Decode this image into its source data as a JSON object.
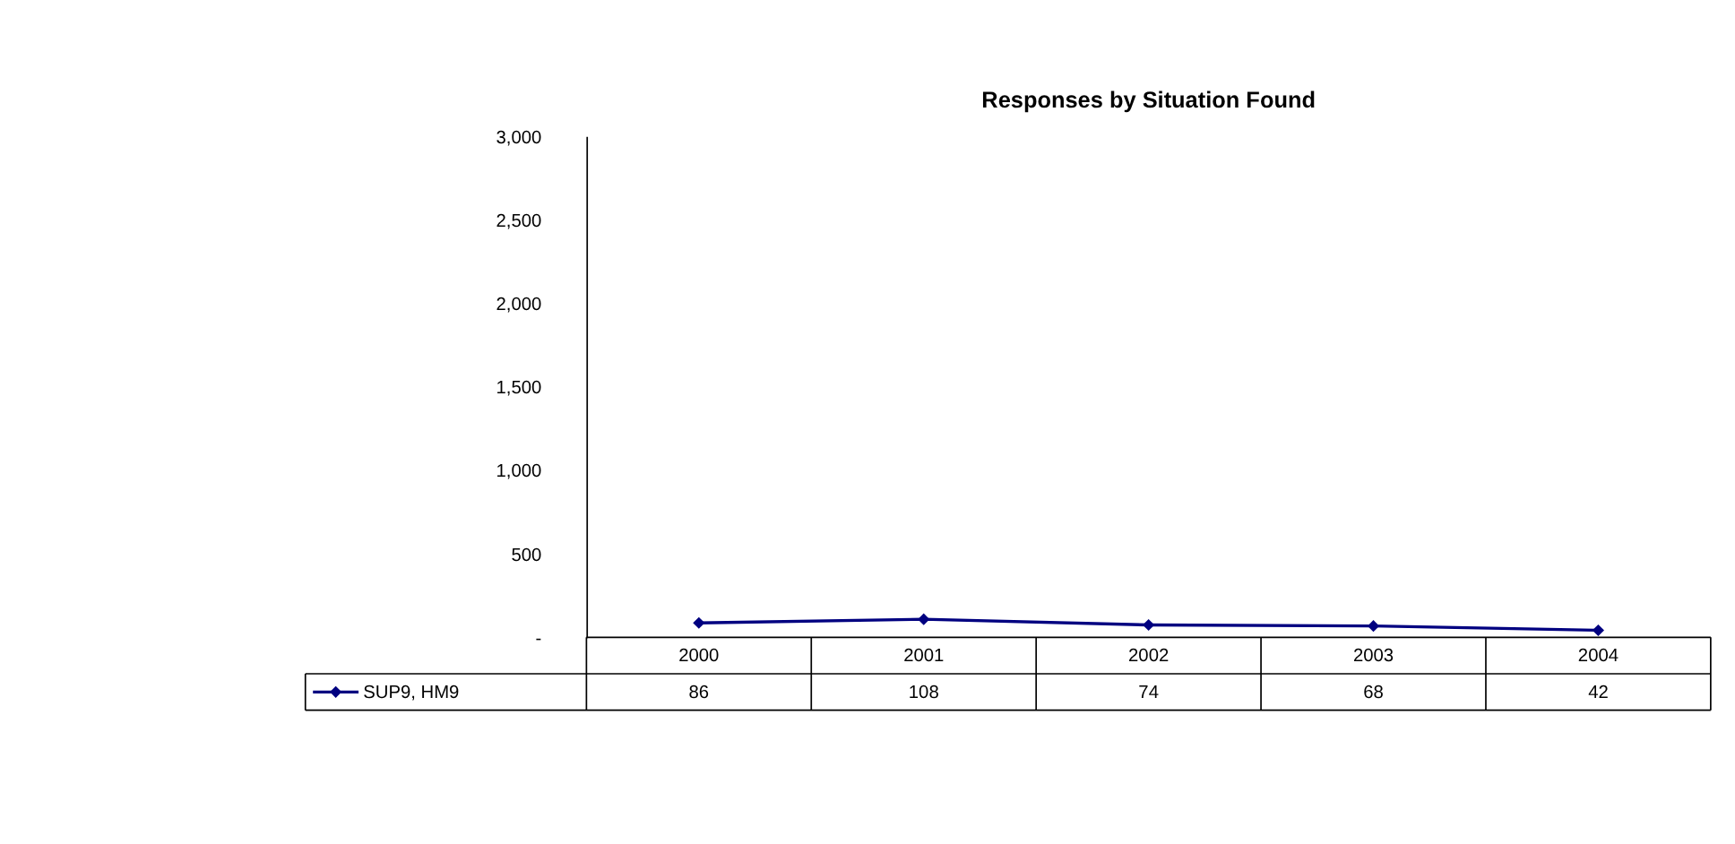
{
  "chart_data": {
    "type": "line",
    "title": "Responses by Situation Found",
    "categories": [
      "2000",
      "2001",
      "2002",
      "2003",
      "2004"
    ],
    "series": [
      {
        "name": "SUP9, HM9",
        "color": "#000080",
        "values": [
          86,
          108,
          74,
          68,
          42
        ]
      }
    ],
    "ylim": [
      0,
      3000
    ],
    "yticks": [
      {
        "value": 0,
        "label": "-"
      },
      {
        "value": 500,
        "label": "500"
      },
      {
        "value": 1000,
        "label": "1,000"
      },
      {
        "value": 1500,
        "label": "1,500"
      },
      {
        "value": 2000,
        "label": "2,000"
      },
      {
        "value": 2500,
        "label": "2,500"
      },
      {
        "value": 3000,
        "label": "3,000"
      }
    ],
    "grid": false,
    "legend": "bottom left",
    "marker": "diamond",
    "line_style": "solid",
    "data_labels": true
  }
}
